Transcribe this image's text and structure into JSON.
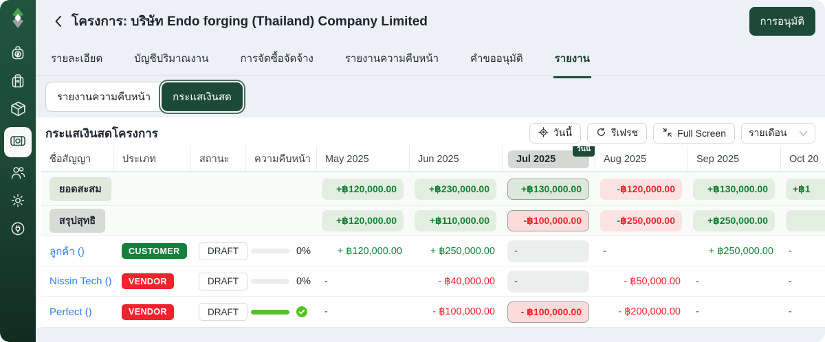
{
  "header": {
    "title": "โครงการ: บริษัท Endo forging (Thailand) Company Limited",
    "approval_button": "การอนุมัติ"
  },
  "tabs": {
    "items": [
      "รายละเอียด",
      "บัญชีปริมาณงาน",
      "การจัดซื้อจัดจ้าง",
      "รายงานความคืบหน้า",
      "คำขออนุมัติ",
      "รายงาน"
    ],
    "active_index": 5
  },
  "subtabs": {
    "items": [
      "รายงานความคืบหน้า",
      "กระแสเงินสด"
    ],
    "active_index": 1
  },
  "section": {
    "title": "กระแสเงินสดโครงการ"
  },
  "toolbar": {
    "today": "วันนี้",
    "refresh": "รีเฟรช",
    "fullscreen": "Full Screen",
    "period_select": "รายเดือน"
  },
  "table": {
    "columns": [
      "ชื่อสัญญา",
      "ประเภท",
      "สถานะ",
      "ความคืบหน้า",
      "May 2025",
      "Jun 2025",
      "Jul 2025",
      "Aug 2025",
      "Sep 2025",
      "Oct 20"
    ],
    "today_index": 6,
    "today_badge": "วันนี้",
    "summary_rows": [
      {
        "label": "ยอดสะสม",
        "label_style": "green",
        "height": "h49",
        "cells": [
          {
            "text": "+฿120,000.00",
            "style": "pill pos"
          },
          {
            "text": "+฿230,000.00",
            "style": "pill pos"
          },
          {
            "text": "+฿130,000.00",
            "style": "pill pos today"
          },
          {
            "text": "-฿120,000.00",
            "style": "pill neg"
          },
          {
            "text": "+฿130,000.00",
            "style": "pill pos"
          },
          {
            "text": "+฿1",
            "style": "pill pos clip"
          }
        ]
      },
      {
        "label": "สรุปสุทธิ",
        "label_style": "gray",
        "height": "h44",
        "cells": [
          {
            "text": "+฿120,000.00",
            "style": "pill pos"
          },
          {
            "text": "+฿110,000.00",
            "style": "pill pos"
          },
          {
            "text": "-฿100,000.00",
            "style": "pill neg today"
          },
          {
            "text": "-฿250,000.00",
            "style": "pill neg"
          },
          {
            "text": "+฿250,000.00",
            "style": "pill pos"
          },
          {
            "text": "",
            "style": "pill pos"
          }
        ]
      }
    ],
    "contract_rows": [
      {
        "name": "ลูกค้า ()",
        "badge": "CUSTOMER",
        "badge_color": "green",
        "status": "DRAFT",
        "progress": {
          "percent": 0,
          "label": "0%",
          "complete": false
        },
        "height": "h44",
        "cells": [
          {
            "text": "+ ฿120,000.00",
            "style": "text pos"
          },
          {
            "text": "+ ฿250,000.00",
            "style": "text pos"
          },
          {
            "text": "-",
            "style": "shade"
          },
          {
            "text": "-",
            "style": "dash"
          },
          {
            "text": "+ ฿250,000.00",
            "style": "text pos"
          },
          {
            "text": "-",
            "style": "dash"
          }
        ]
      },
      {
        "name": "Nissin Tech ()",
        "badge": "VENDOR",
        "badge_color": "red",
        "status": "DRAFT",
        "progress": {
          "percent": 0,
          "label": "0%",
          "complete": false
        },
        "height": "h44",
        "cells": [
          {
            "text": "-",
            "style": "dash"
          },
          {
            "text": "- ฿40,000.00",
            "style": "text neg"
          },
          {
            "text": "-",
            "style": "shade"
          },
          {
            "text": "- ฿50,000.00",
            "style": "text neg"
          },
          {
            "text": "-",
            "style": "dash"
          },
          {
            "text": "-",
            "style": "dash"
          }
        ]
      },
      {
        "name": "Perfect ()",
        "badge": "VENDOR",
        "badge_color": "red",
        "status": "DRAFT",
        "progress": {
          "percent": 100,
          "label": "",
          "complete": true
        },
        "height": "h45",
        "cells": [
          {
            "text": "-",
            "style": "dash"
          },
          {
            "text": "- ฿100,000.00",
            "style": "text neg"
          },
          {
            "text": "- ฿100,000.00",
            "style": "pill neg today"
          },
          {
            "text": "- ฿200,000.00",
            "style": "text neg"
          },
          {
            "text": "-",
            "style": "dash"
          },
          {
            "text": "-",
            "style": "dash"
          }
        ]
      }
    ]
  },
  "sidebar": {
    "items": [
      "money-bag",
      "briefcase",
      "package",
      "banknote",
      "users",
      "gear",
      "plug"
    ],
    "active_index": 3
  },
  "colors": {
    "brand_green": "#1d4a38",
    "positive_text": "#157f35",
    "negative_text": "#f5222d",
    "positive_pill_bg": "#e2eedf",
    "negative_pill_bg": "#fce3e1",
    "link_blue": "#2f7ff0",
    "progress_green": "#55c02b"
  }
}
